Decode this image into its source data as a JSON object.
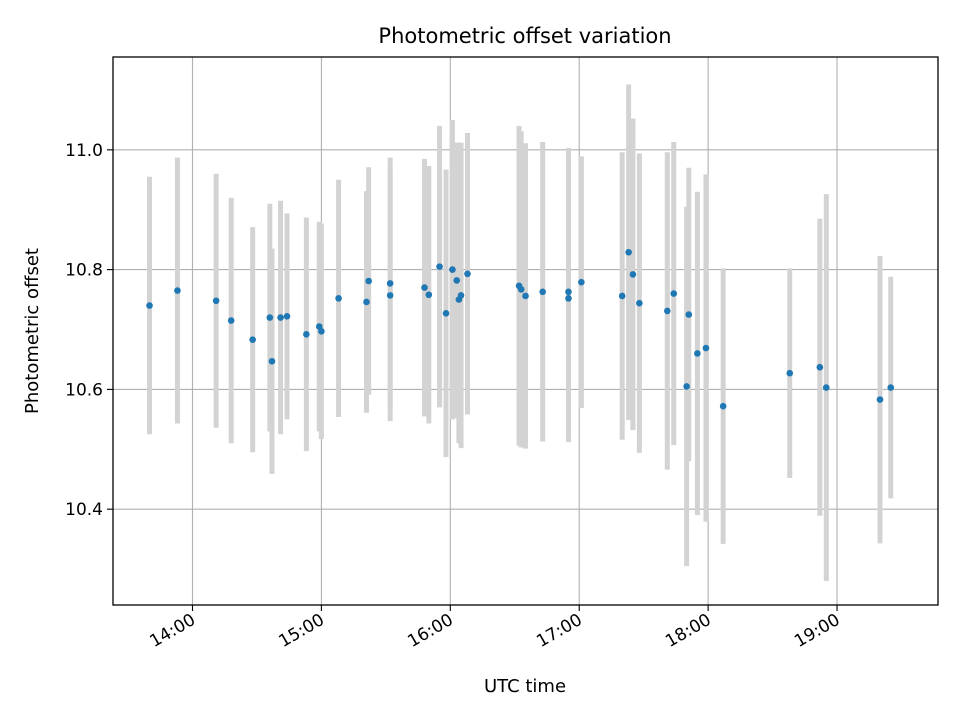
{
  "chart_data": {
    "type": "scatter",
    "title": "Photometric offset variation",
    "xlabel": "UTC time",
    "ylabel": "Photometric offset",
    "x_ticks": [
      "14:00",
      "15:00",
      "16:00",
      "17:00",
      "18:00",
      "19:00"
    ],
    "y_ticks": [
      "10.4",
      "10.6",
      "10.8",
      "11.0"
    ],
    "xlim": [
      "13:23",
      "19:47"
    ],
    "ylim": [
      10.24,
      11.155
    ],
    "grid": true,
    "colors": {
      "point": "#1f77b4",
      "errorbar": "#d3d3d3",
      "grid": "#b0b0b0"
    },
    "series": [
      {
        "x": [
          "13:40",
          "13:53",
          "14:11",
          "14:18",
          "14:28",
          "14:36",
          "14:37",
          "14:41",
          "14:44",
          "14:53",
          "14:59",
          "15:00",
          "15:08",
          "15:21",
          "15:22",
          "15:32",
          "15:32",
          "15:48",
          "15:50",
          "15:55",
          "15:58",
          "16:01",
          "16:03",
          "16:04",
          "16:05",
          "16:08",
          "16:32",
          "16:33",
          "16:35",
          "16:43",
          "16:55",
          "16:55",
          "17:01",
          "17:20",
          "17:23",
          "17:25",
          "17:28",
          "17:41",
          "17:44",
          "17:50",
          "17:51",
          "17:55",
          "17:59",
          "18:07",
          "18:38",
          "18:52",
          "18:55",
          "19:20",
          "19:25"
        ],
        "y": [
          10.74,
          10.765,
          10.748,
          10.715,
          10.683,
          10.72,
          10.647,
          10.72,
          10.722,
          10.692,
          10.705,
          10.697,
          10.752,
          10.746,
          10.781,
          10.757,
          10.777,
          10.77,
          10.758,
          10.805,
          10.727,
          10.8,
          10.782,
          10.75,
          10.757,
          10.793,
          10.773,
          10.767,
          10.756,
          10.763,
          10.763,
          10.752,
          10.779,
          10.756,
          10.829,
          10.792,
          10.744,
          10.731,
          10.76,
          10.605,
          10.725,
          10.66,
          10.669,
          10.572,
          10.627,
          10.637,
          10.603,
          10.583,
          10.603
        ],
        "y_err": [
          0.215,
          0.222,
          0.212,
          0.205,
          0.188,
          0.19,
          0.188,
          0.195,
          0.172,
          0.195,
          0.175,
          0.18,
          0.198,
          0.185,
          0.19,
          0.21,
          0.21,
          0.215,
          0.215,
          0.235,
          0.24,
          0.25,
          0.23,
          0.24,
          0.255,
          0.235,
          0.267,
          0.264,
          0.255,
          0.25,
          0.24,
          0.24,
          0.21,
          0.24,
          0.28,
          0.26,
          0.25,
          0.265,
          0.253,
          0.3,
          0.245,
          0.27,
          0.29,
          0.23,
          0.175,
          0.248,
          0.323,
          0.24,
          0.185
        ]
      }
    ]
  }
}
